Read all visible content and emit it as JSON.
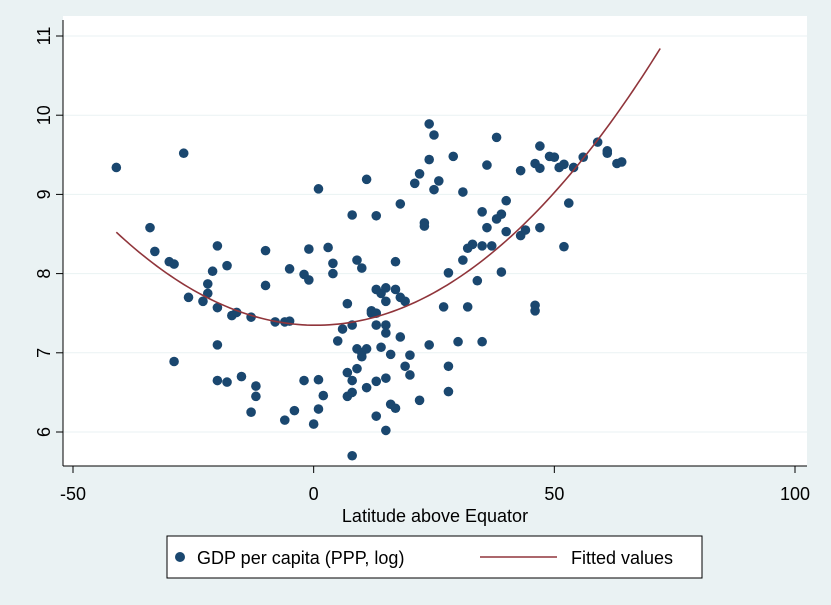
{
  "chart_data": {
    "type": "scatter",
    "xlabel": "Latitude above Equator",
    "ylabel": "",
    "xlim": [
      -50,
      100
    ],
    "ylim": [
      5.5,
      11
    ],
    "x_ticks": [
      "-50",
      "0",
      "50",
      "100"
    ],
    "y_ticks": [
      "6",
      "7",
      "8",
      "9",
      "10",
      "11"
    ],
    "x_tick_values": [
      -50,
      0,
      50,
      100
    ],
    "y_tick_values": [
      6,
      7,
      8,
      9,
      10,
      11
    ],
    "grid": "horizontal",
    "legend_position": "bottom",
    "colors": {
      "scatter": "#1a476f",
      "fit": "#90353b",
      "plot_bg": "#ffffff",
      "outer_bg": "#eaf2f3"
    },
    "series": [
      {
        "name": "GDP per capita (PPP, log)",
        "kind": "scatter",
        "points": [
          [
            -41,
            9.34
          ],
          [
            -34,
            8.58
          ],
          [
            -33,
            8.28
          ],
          [
            -30,
            8.15
          ],
          [
            -29,
            8.12
          ],
          [
            -29,
            6.89
          ],
          [
            -27,
            9.52
          ],
          [
            -26,
            7.7
          ],
          [
            -23,
            7.65
          ],
          [
            -22,
            7.87
          ],
          [
            -22,
            7.75
          ],
          [
            -21,
            8.03
          ],
          [
            -20,
            8.35
          ],
          [
            -20,
            7.57
          ],
          [
            -20,
            7.1
          ],
          [
            -20,
            6.65
          ],
          [
            -18,
            6.63
          ],
          [
            -18,
            8.1
          ],
          [
            -17,
            7.47
          ],
          [
            -16,
            7.51
          ],
          [
            -15,
            6.7
          ],
          [
            -13,
            7.45
          ],
          [
            -13,
            6.25
          ],
          [
            -12,
            6.58
          ],
          [
            -12,
            6.45
          ],
          [
            -10,
            8.29
          ],
          [
            -10,
            7.85
          ],
          [
            -8,
            7.39
          ],
          [
            -6,
            7.39
          ],
          [
            -6,
            6.15
          ],
          [
            -5,
            7.4
          ],
          [
            -5,
            8.06
          ],
          [
            -4,
            6.27
          ],
          [
            -2,
            7.99
          ],
          [
            -2,
            6.65
          ],
          [
            -1,
            7.92
          ],
          [
            -1,
            8.31
          ],
          [
            0,
            6.1
          ],
          [
            1,
            6.29
          ],
          [
            1,
            6.66
          ],
          [
            1,
            9.07
          ],
          [
            2,
            6.46
          ],
          [
            3,
            8.33
          ],
          [
            4,
            8.13
          ],
          [
            4,
            8.0
          ],
          [
            5,
            7.15
          ],
          [
            6,
            7.3
          ],
          [
            7,
            7.62
          ],
          [
            7,
            6.75
          ],
          [
            7,
            6.45
          ],
          [
            8,
            7.35
          ],
          [
            8,
            8.74
          ],
          [
            8,
            6.65
          ],
          [
            8,
            6.5
          ],
          [
            8,
            5.7
          ],
          [
            9,
            8.17
          ],
          [
            9,
            6.8
          ],
          [
            9,
            7.05
          ],
          [
            10,
            6.95
          ],
          [
            10,
            8.07
          ],
          [
            10,
            7.0
          ],
          [
            11,
            9.19
          ],
          [
            11,
            7.05
          ],
          [
            11,
            6.56
          ],
          [
            12,
            7.53
          ],
          [
            12,
            7.5
          ],
          [
            13,
            8.73
          ],
          [
            13,
            7.8
          ],
          [
            13,
            7.35
          ],
          [
            13,
            7.5
          ],
          [
            13,
            6.64
          ],
          [
            13,
            6.2
          ],
          [
            14,
            7.75
          ],
          [
            14,
            7.07
          ],
          [
            15,
            7.82
          ],
          [
            15,
            7.65
          ],
          [
            15,
            7.35
          ],
          [
            15,
            7.25
          ],
          [
            15,
            6.68
          ],
          [
            15,
            6.02
          ],
          [
            16,
            6.98
          ],
          [
            16,
            6.35
          ],
          [
            17,
            6.3
          ],
          [
            17,
            8.15
          ],
          [
            17,
            7.8
          ],
          [
            18,
            7.2
          ],
          [
            18,
            8.88
          ],
          [
            18,
            7.7
          ],
          [
            19,
            6.83
          ],
          [
            19,
            7.65
          ],
          [
            20,
            6.97
          ],
          [
            20,
            6.72
          ],
          [
            21,
            9.14
          ],
          [
            22,
            6.4
          ],
          [
            22,
            9.26
          ],
          [
            23,
            8.64
          ],
          [
            23,
            8.6
          ],
          [
            24,
            9.89
          ],
          [
            24,
            9.44
          ],
          [
            24,
            7.1
          ],
          [
            25,
            9.75
          ],
          [
            25,
            9.06
          ],
          [
            26,
            9.17
          ],
          [
            27,
            7.58
          ],
          [
            28,
            8.01
          ],
          [
            28,
            6.83
          ],
          [
            28,
            6.51
          ],
          [
            29,
            9.48
          ],
          [
            30,
            7.14
          ],
          [
            31,
            8.17
          ],
          [
            31,
            9.03
          ],
          [
            32,
            7.58
          ],
          [
            32,
            8.32
          ],
          [
            33,
            8.37
          ],
          [
            34,
            7.91
          ],
          [
            35,
            8.35
          ],
          [
            35,
            8.78
          ],
          [
            35,
            7.14
          ],
          [
            36,
            9.37
          ],
          [
            36,
            8.58
          ],
          [
            37,
            8.35
          ],
          [
            38,
            9.72
          ],
          [
            38,
            8.69
          ],
          [
            39,
            8.02
          ],
          [
            39,
            8.75
          ],
          [
            40,
            8.92
          ],
          [
            40,
            8.53
          ],
          [
            43,
            9.3
          ],
          [
            43,
            8.48
          ],
          [
            44,
            8.55
          ],
          [
            46,
            9.39
          ],
          [
            46,
            7.6
          ],
          [
            46,
            7.53
          ],
          [
            47,
            9.61
          ],
          [
            47,
            9.33
          ],
          [
            47,
            8.58
          ],
          [
            49,
            9.48
          ],
          [
            50,
            9.47
          ],
          [
            51,
            9.34
          ],
          [
            52,
            9.38
          ],
          [
            52,
            8.34
          ],
          [
            53,
            8.89
          ],
          [
            54,
            9.34
          ],
          [
            56,
            9.47
          ],
          [
            59,
            9.66
          ],
          [
            61,
            9.55
          ],
          [
            61,
            9.52
          ],
          [
            63,
            9.39
          ],
          [
            64,
            9.41
          ]
        ]
      },
      {
        "name": "Fitted values",
        "kind": "line",
        "coefficients": {
          "a": 7.3483,
          "b": -0.00065,
          "c": 0.000683
        },
        "xrange": [
          -41,
          72
        ]
      }
    ]
  }
}
